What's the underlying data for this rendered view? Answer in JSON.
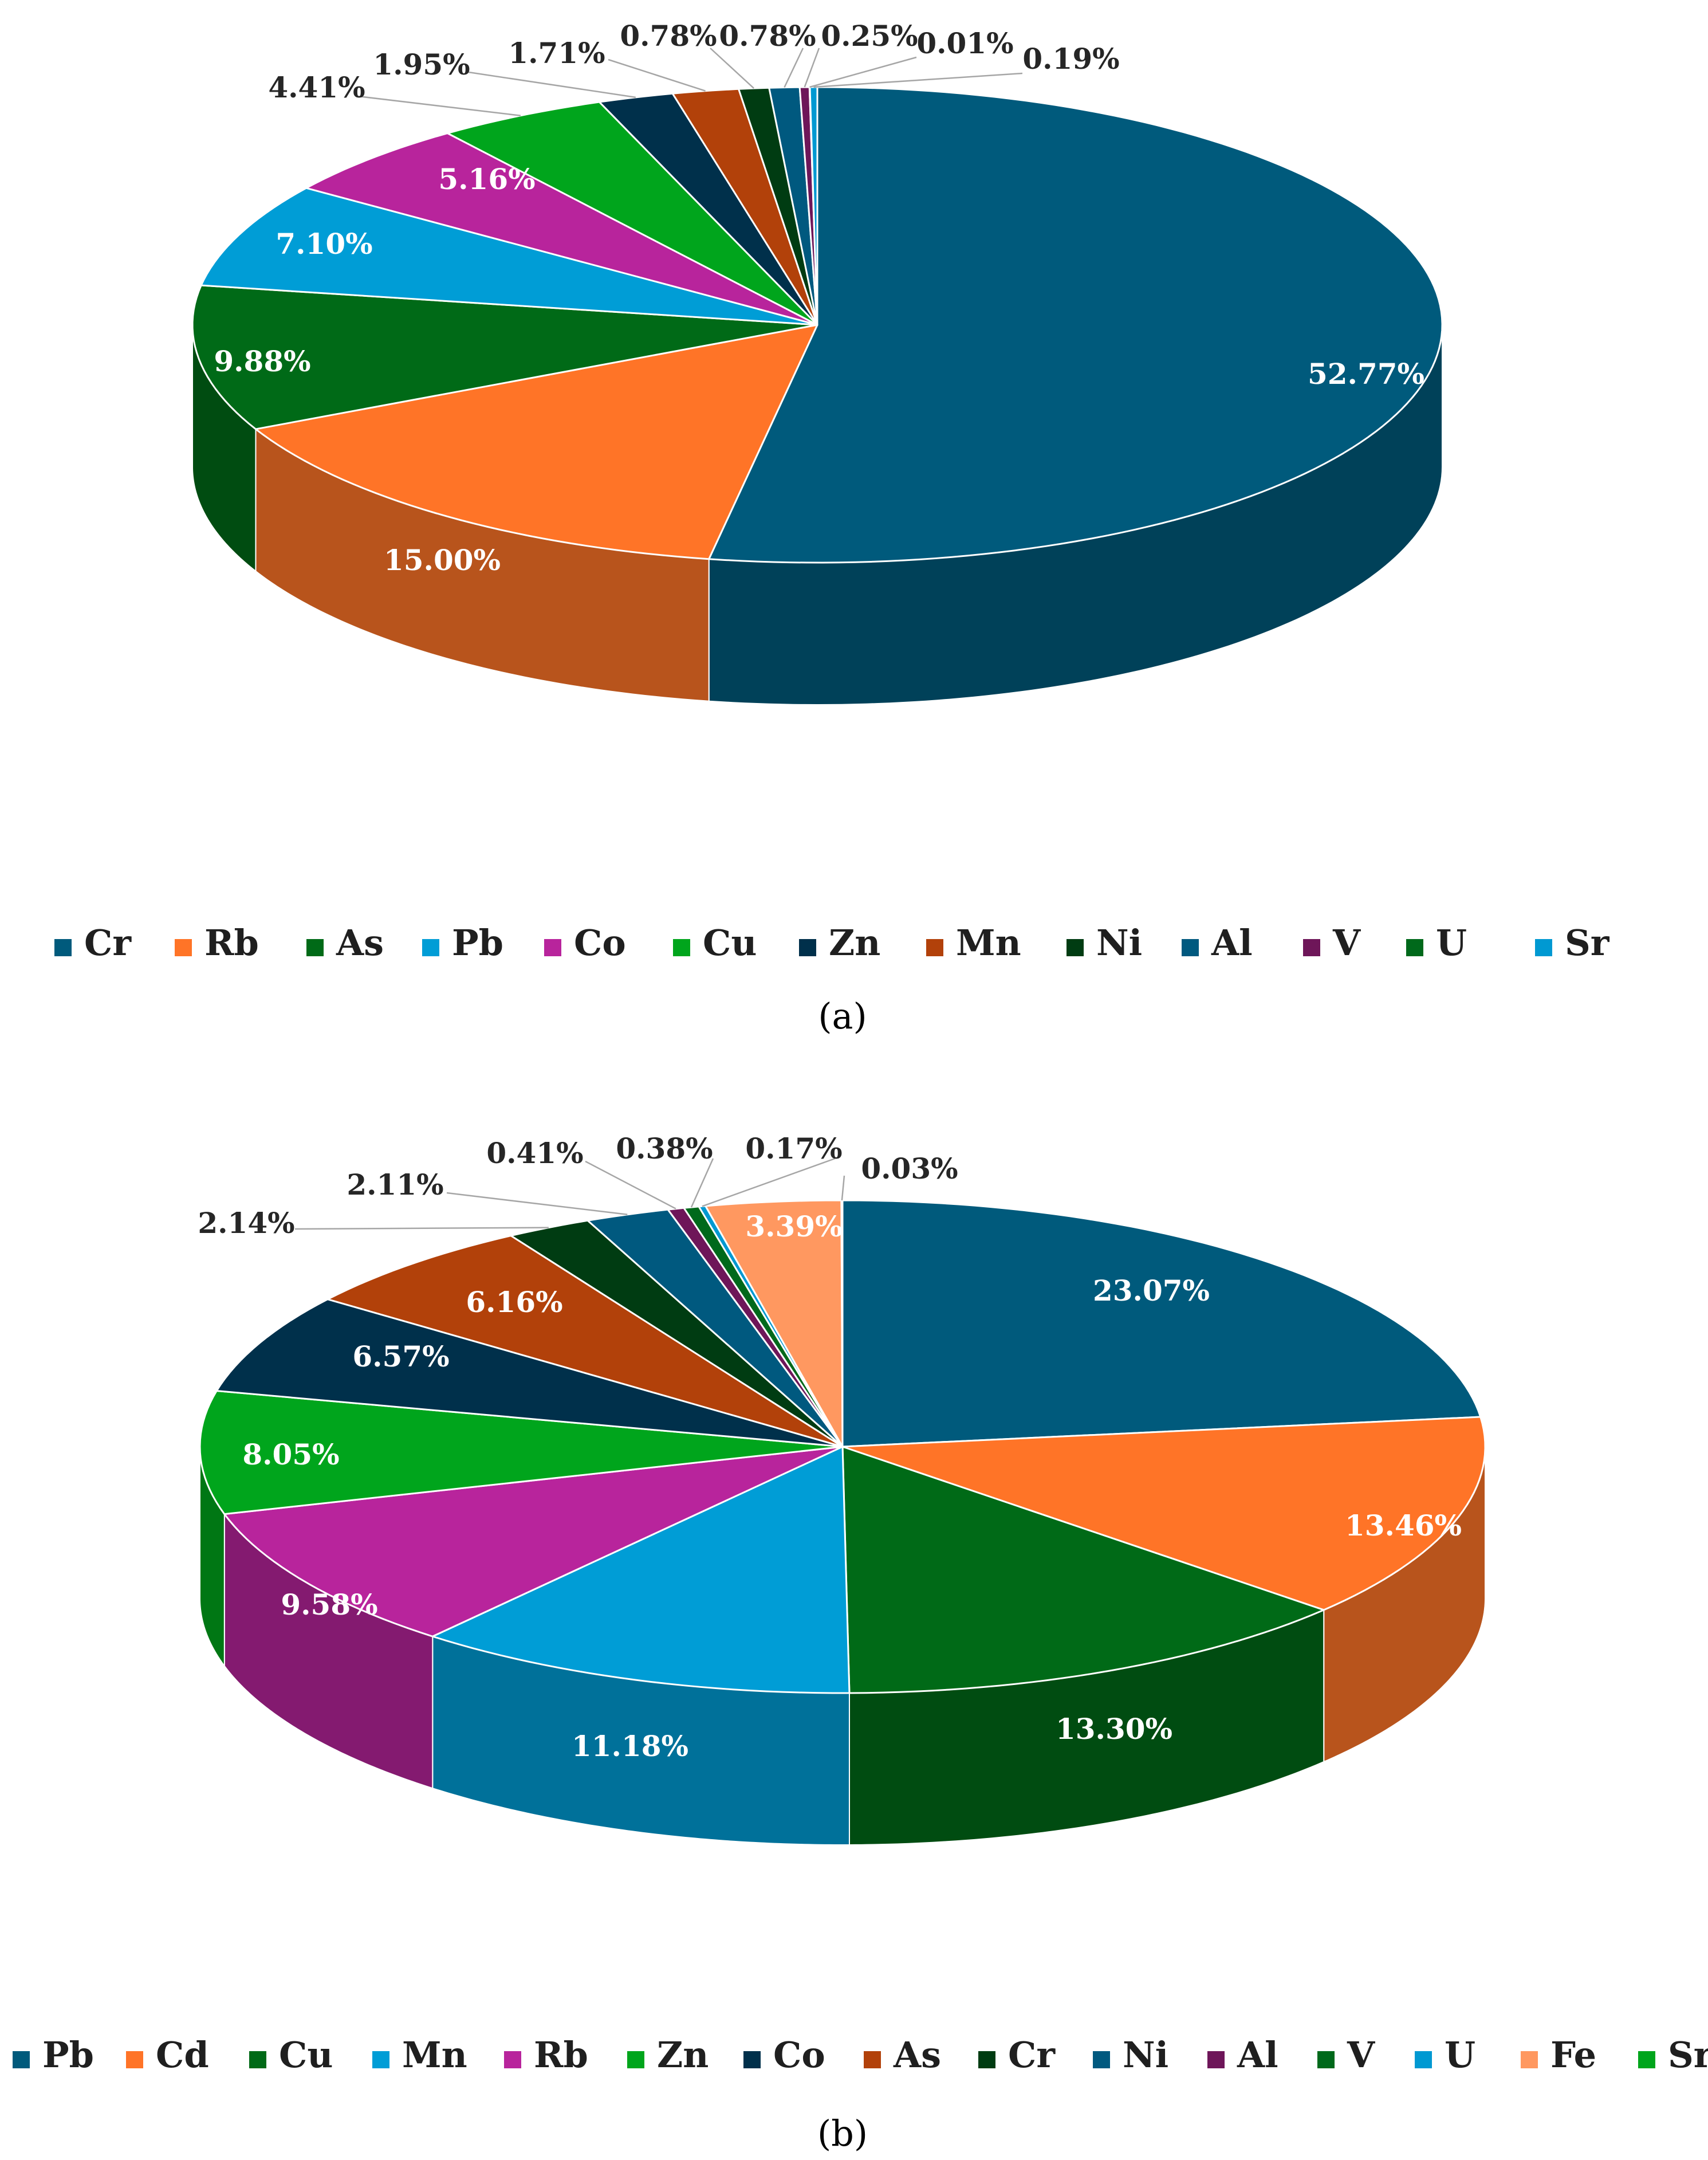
{
  "chart_data": [
    {
      "type": "pie",
      "panel_label": "(a)",
      "title": "",
      "legend_position": "bottom",
      "slices": [
        {
          "name": "Cr",
          "value": 52.77,
          "label": "52.77%",
          "color": "#005A7C",
          "label_color": "#ffffff",
          "outside": false
        },
        {
          "name": "Rb",
          "value": 15.0,
          "label": "15.00%",
          "color": "#FF7427",
          "label_color": "#ffffff",
          "outside": false
        },
        {
          "name": "As",
          "value": 9.88,
          "label": "9.88%",
          "color": "#006A17",
          "label_color": "#ffffff",
          "outside": false
        },
        {
          "name": "Pb",
          "value": 7.1,
          "label": "7.10%",
          "color": "#009DD6",
          "label_color": "#ffffff",
          "outside": false
        },
        {
          "name": "Co",
          "value": 5.16,
          "label": "5.16%",
          "color": "#B8249C",
          "label_color": "#ffffff",
          "outside": false
        },
        {
          "name": "Cu",
          "value": 4.41,
          "label": "4.41%",
          "color": "#00A51C",
          "label_color": "#262626",
          "outside": true
        },
        {
          "name": "Zn",
          "value": 1.95,
          "label": "1.95%",
          "color": "#00304B",
          "label_color": "#262626",
          "outside": true
        },
        {
          "name": "Mn",
          "value": 1.71,
          "label": "1.71%",
          "color": "#B2410A",
          "label_color": "#262626",
          "outside": true
        },
        {
          "name": "Ni",
          "value": 0.78,
          "label": "0.78%",
          "color": "#003C12",
          "label_color": "#262626",
          "outside": true
        },
        {
          "name": "Al",
          "value": 0.78,
          "label": "0.78%",
          "color": "#00597F",
          "label_color": "#262626",
          "outside": true
        },
        {
          "name": "V",
          "value": 0.25,
          "label": "0.25%",
          "color": "#6E1659",
          "label_color": "#262626",
          "outside": true
        },
        {
          "name": "U",
          "value": 0.01,
          "label": "0.01%",
          "color": "#00691B",
          "label_color": "#262626",
          "outside": true
        },
        {
          "name": "Sr",
          "value": 0.19,
          "label": "0.19%",
          "color": "#0099D2",
          "label_color": "#262626",
          "outside": true
        }
      ]
    },
    {
      "type": "pie",
      "panel_label": "(b)",
      "title": "",
      "legend_position": "bottom",
      "slices": [
        {
          "name": "Pb",
          "value": 23.07,
          "label": "23.07%",
          "color": "#005A7C",
          "label_color": "#ffffff",
          "outside": false
        },
        {
          "name": "Cd",
          "value": 13.46,
          "label": "13.46%",
          "color": "#FF7427",
          "label_color": "#ffffff",
          "outside": false
        },
        {
          "name": "Cu",
          "value": 13.3,
          "label": "13.30%",
          "color": "#006A17",
          "label_color": "#ffffff",
          "outside": false
        },
        {
          "name": "Mn",
          "value": 11.18,
          "label": "11.18%",
          "color": "#009DD6",
          "label_color": "#ffffff",
          "outside": false
        },
        {
          "name": "Rb",
          "value": 9.58,
          "label": "9.58%",
          "color": "#B8249C",
          "label_color": "#ffffff",
          "outside": false
        },
        {
          "name": "Zn",
          "value": 8.05,
          "label": "8.05%",
          "color": "#00A51C",
          "label_color": "#ffffff",
          "outside": false
        },
        {
          "name": "Co",
          "value": 6.57,
          "label": "6.57%",
          "color": "#00304B",
          "label_color": "#ffffff",
          "outside": false
        },
        {
          "name": "As",
          "value": 6.16,
          "label": "6.16%",
          "color": "#B2410A",
          "label_color": "#ffffff",
          "outside": false
        },
        {
          "name": "Cr",
          "value": 2.14,
          "label": "2.14%",
          "color": "#003C12",
          "label_color": "#262626",
          "outside": true
        },
        {
          "name": "Ni",
          "value": 2.11,
          "label": "2.11%",
          "color": "#00597F",
          "label_color": "#262626",
          "outside": true
        },
        {
          "name": "Al",
          "value": 0.41,
          "label": "0.41%",
          "color": "#6E1659",
          "label_color": "#262626",
          "outside": true
        },
        {
          "name": "V",
          "value": 0.38,
          "label": "0.38%",
          "color": "#00691B",
          "label_color": "#262626",
          "outside": true
        },
        {
          "name": "U",
          "value": 0.17,
          "label": "0.17%",
          "color": "#0099D2",
          "label_color": "#262626",
          "outside": true
        },
        {
          "name": "Fe",
          "value": 3.39,
          "label": "3.39%",
          "color": "#FF9860",
          "label_color": "#ffffff",
          "outside": false
        },
        {
          "name": "Sr",
          "value": 0.03,
          "label": "0.03%",
          "color": "#00A51C",
          "label_color": "#262626",
          "outside": true
        }
      ]
    }
  ]
}
